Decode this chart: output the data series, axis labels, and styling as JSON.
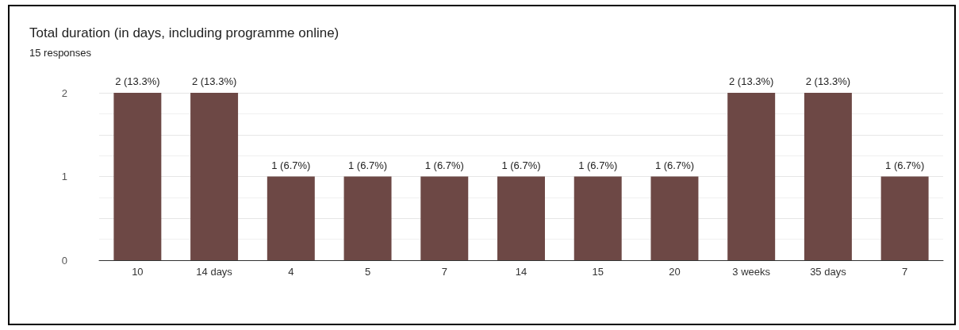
{
  "chart_data": {
    "type": "bar",
    "title": "Total duration (in days, including programme online)",
    "subtitle": "15 responses",
    "categories": [
      "10",
      "14 days",
      "4",
      "5",
      "7",
      "14",
      "15",
      "20",
      "3 weeks",
      "35 days",
      "7"
    ],
    "values": [
      2,
      2,
      1,
      1,
      1,
      1,
      1,
      1,
      2,
      2,
      1
    ],
    "value_labels": [
      "2 (13.3%)",
      "2 (13.3%)",
      "1 (6.7%)",
      "1 (6.7%)",
      "1 (6.7%)",
      "1 (6.7%)",
      "1 (6.7%)",
      "1 (6.7%)",
      "2 (13.3%)",
      "2 (13.3%)",
      "1 (6.7%)"
    ],
    "color": "#6d4845",
    "ylim": [
      0,
      2
    ],
    "yticks": [
      0,
      1,
      2
    ],
    "grid": "y"
  }
}
